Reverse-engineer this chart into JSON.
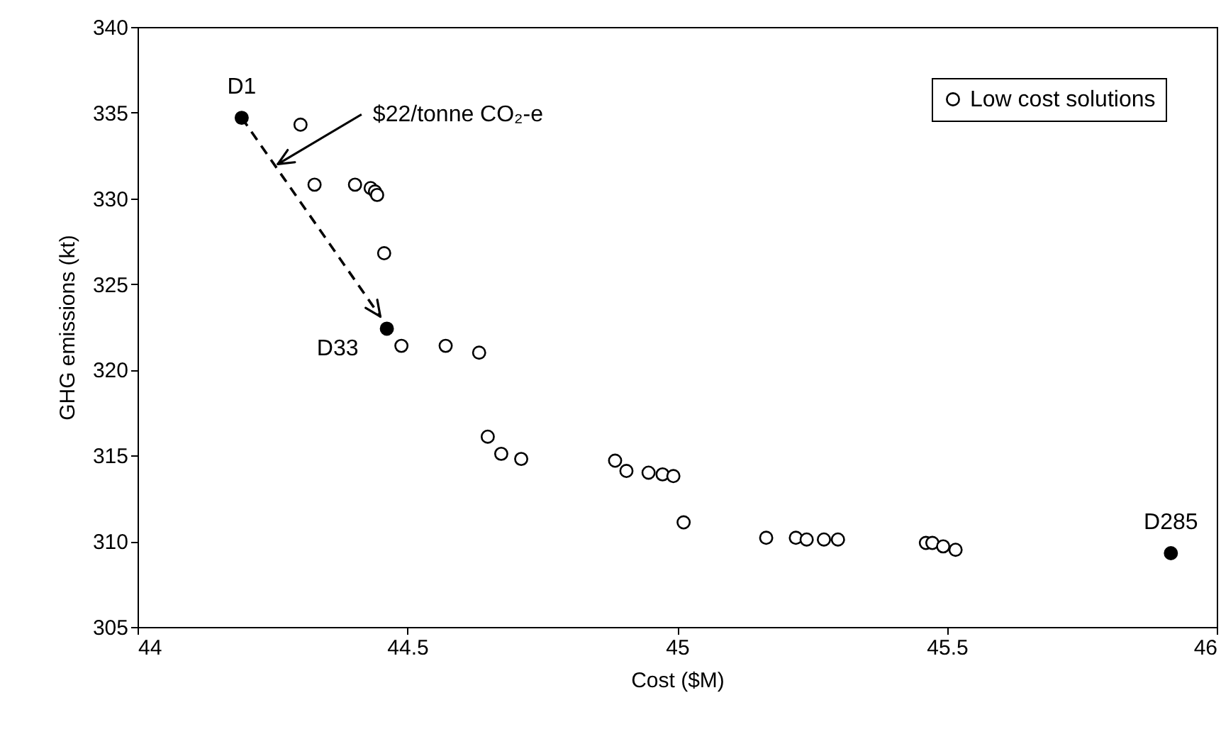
{
  "chart_data": {
    "type": "scatter",
    "xlabel": "Cost ($M)",
    "ylabel": "GHG emissions (kt)",
    "xlim": [
      44,
      46
    ],
    "xticks": [
      44,
      44.5,
      45,
      45.5,
      46
    ],
    "ylim": [
      305,
      340
    ],
    "yticks": [
      305,
      310,
      315,
      320,
      325,
      330,
      335,
      340
    ],
    "grid": false,
    "legend": "top right",
    "marker": "circle",
    "series": [
      {
        "name": "Low cost solutions",
        "color": "#000000",
        "x": [
          44.302,
          44.328,
          44.403,
          44.432,
          44.44,
          44.444,
          44.457,
          44.489,
          44.571,
          44.633,
          44.649,
          44.674,
          44.711,
          44.885,
          44.906,
          44.947,
          44.973,
          44.993,
          45.012,
          45.165,
          45.22,
          45.24,
          45.272,
          45.298,
          45.461,
          45.473,
          45.493,
          45.516
        ],
        "values": [
          334.3,
          330.8,
          330.8,
          330.6,
          330.4,
          330.2,
          326.8,
          321.4,
          321.4,
          321,
          316.1,
          315.1,
          314.8,
          314.7,
          314.1,
          314,
          313.9,
          313.8,
          311.1,
          310.2,
          310.2,
          310.1,
          310.1,
          310.1,
          309.9,
          309.9,
          309.7,
          309.5
        ]
      },
      {
        "color": "#000000",
        "x": [
          44.193,
          44.462,
          45.915
        ],
        "values": [
          334.7,
          322.4,
          309.3
        ]
      },
      {
        "type": "line",
        "color": "#000000",
        "line_style": "dashed",
        "marker": "none",
        "x": [
          44.193,
          44.45
        ],
        "values": [
          334.7,
          323.1
        ]
      }
    ],
    "annotations": [
      {
        "text": "D1",
        "x": 44.193,
        "y": 334.7
      },
      {
        "text": "D33",
        "x": 44.462,
        "y": 322.4
      },
      {
        "text": "D285",
        "x": 45.915,
        "y": 309.3
      },
      {
        "text": "$22/tonne CO₂-e",
        "x": 44.26,
        "y": 332
      }
    ]
  }
}
